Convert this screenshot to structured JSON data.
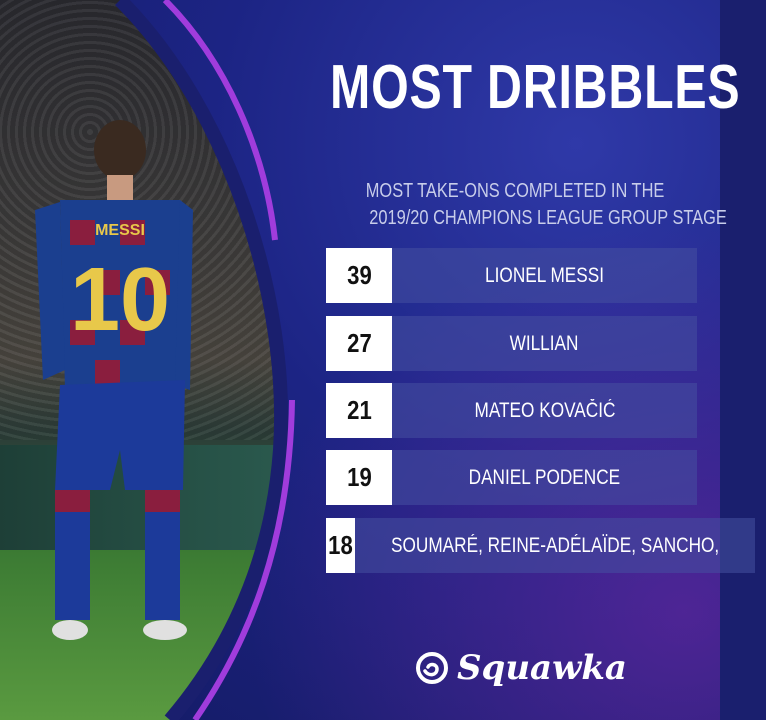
{
  "title": "MOST DRIBBLES",
  "subtitle_lines": [
    "MOST TAKE-ONS COMPLETED IN THE",
    "2019/20 CHAMPIONS LEAGUE GROUP STAGE"
  ],
  "rows": [
    {
      "value": "39",
      "name": "LIONEL MESSI"
    },
    {
      "value": "27",
      "name": "WILLIAN"
    },
    {
      "value": "21",
      "name": "MATEO KOVAČIĆ"
    },
    {
      "value": "19",
      "name": "DANIEL PODENCE"
    },
    {
      "value": "18",
      "name": "SOUMARÉ, REINE-ADÉLAÏDE, SANCHO,"
    }
  ],
  "photo": {
    "shirt_name": "MESSI",
    "shirt_number": "10"
  },
  "brand": {
    "name": "Squawka",
    "accent": "#a03cdc",
    "background": "#1c2484"
  }
}
